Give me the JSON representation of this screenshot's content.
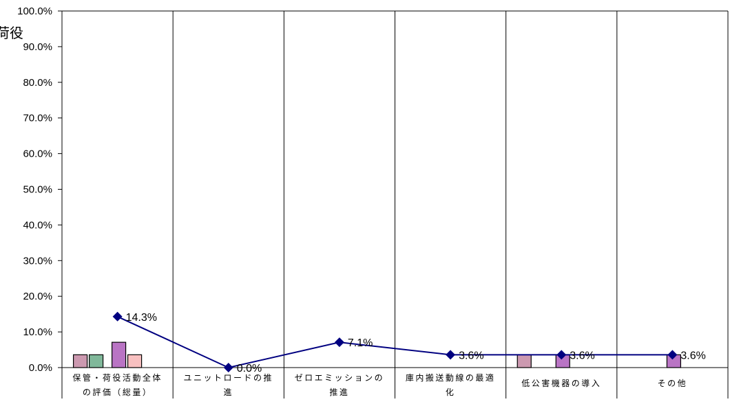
{
  "chart_data": {
    "type": "bar+line",
    "title": "",
    "title_fragment": "荷役",
    "categories": [
      [
        "保管・荷役活動全体",
        "の評価（総量）"
      ],
      [
        "ユニットロードの推",
        "進"
      ],
      [
        "ゼロエミッションの",
        "推進"
      ],
      [
        "庫内搬送動線の最適",
        "化"
      ],
      [
        "低公害機器の導入"
      ],
      [
        "その他"
      ]
    ],
    "ylim": [
      0,
      100
    ],
    "y_ticks": [
      "0.0%",
      "10.0%",
      "20.0%",
      "30.0%",
      "40.0%",
      "50.0%",
      "60.0%",
      "70.0%",
      "80.0%",
      "90.0%",
      "100.0%"
    ],
    "grid": "vertical category separators",
    "line_series": {
      "color": "#000080",
      "marker": "diamond",
      "values": [
        14.3,
        0.0,
        7.1,
        3.6,
        3.6,
        3.6
      ],
      "labels": [
        "14.3%",
        "0.0%",
        "7.1%",
        "3.6%",
        "3.6%",
        "3.6%"
      ]
    },
    "bar_series": [
      {
        "color": "#cc99b0",
        "values": [
          3.6,
          null,
          null,
          null,
          3.6,
          null
        ]
      },
      {
        "color": "#80b89a",
        "values": [
          3.6,
          null,
          null,
          null,
          null,
          null
        ]
      },
      {
        "color": "#b974c4",
        "values": [
          7.1,
          null,
          null,
          null,
          3.6,
          3.6
        ]
      },
      {
        "color": "#f8c0c0",
        "values": [
          3.6,
          null,
          null,
          null,
          null,
          null
        ]
      }
    ]
  }
}
